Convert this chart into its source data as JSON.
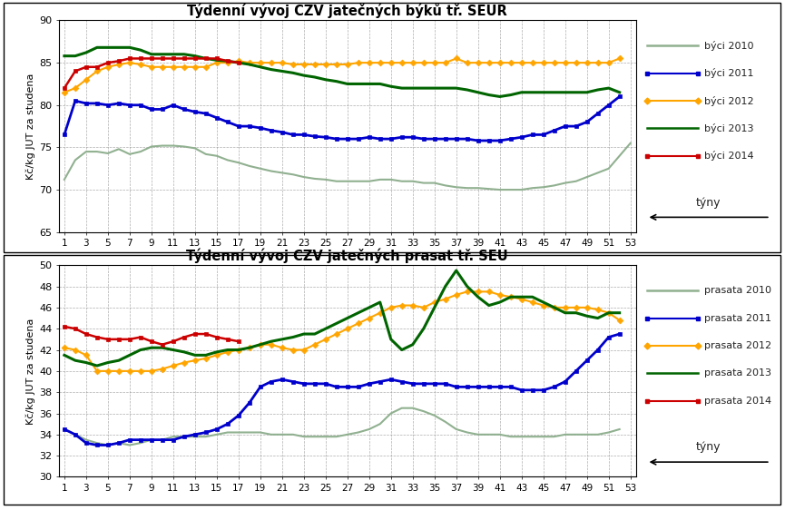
{
  "title1": "Týdenní vývoj CZV jatečných býků tř. SEUR",
  "title2": "Týdenní vývoj CZV jatečných prasat tř. SEU",
  "ylabel": "Kč/kg JUT za studena",
  "xlabel": "týny",
  "weeks": [
    1,
    2,
    3,
    4,
    5,
    6,
    7,
    8,
    9,
    10,
    11,
    12,
    13,
    14,
    15,
    16,
    17,
    18,
    19,
    20,
    21,
    22,
    23,
    24,
    25,
    26,
    27,
    28,
    29,
    30,
    31,
    32,
    33,
    34,
    35,
    36,
    37,
    38,
    39,
    40,
    41,
    42,
    43,
    44,
    45,
    46,
    47,
    48,
    49,
    50,
    51,
    52,
    53
  ],
  "byci2010": [
    71.2,
    73.5,
    74.5,
    74.5,
    74.3,
    74.8,
    74.2,
    74.5,
    75.1,
    75.2,
    75.2,
    75.1,
    74.9,
    74.2,
    74.0,
    73.5,
    73.2,
    72.8,
    72.5,
    72.2,
    72.0,
    71.8,
    71.5,
    71.3,
    71.2,
    71.0,
    71.0,
    71.0,
    71.0,
    71.2,
    71.2,
    71.0,
    71.0,
    70.8,
    70.8,
    70.5,
    70.3,
    70.2,
    70.2,
    70.1,
    70.0,
    70.0,
    70.0,
    70.2,
    70.3,
    70.5,
    70.8,
    71.0,
    71.5,
    72.0,
    72.5,
    74.0,
    75.5
  ],
  "byci2011": [
    76.5,
    80.5,
    80.2,
    80.2,
    80.0,
    80.2,
    80.0,
    80.0,
    79.5,
    79.5,
    80.0,
    79.5,
    79.2,
    79.0,
    78.5,
    78.0,
    77.5,
    77.5,
    77.3,
    77.0,
    76.8,
    76.5,
    76.5,
    76.3,
    76.2,
    76.0,
    76.0,
    76.0,
    76.2,
    76.0,
    76.0,
    76.2,
    76.2,
    76.0,
    76.0,
    76.0,
    76.0,
    76.0,
    75.8,
    75.8,
    75.8,
    76.0,
    76.2,
    76.5,
    76.5,
    77.0,
    77.5,
    77.5,
    78.0,
    79.0,
    80.0,
    81.0,
    null
  ],
  "byci2012": [
    81.5,
    82.0,
    83.0,
    84.0,
    84.5,
    84.8,
    85.0,
    84.8,
    84.5,
    84.5,
    84.5,
    84.5,
    84.5,
    84.5,
    85.0,
    85.0,
    85.2,
    85.0,
    85.0,
    85.0,
    85.0,
    84.8,
    84.8,
    84.8,
    84.8,
    84.8,
    84.8,
    85.0,
    85.0,
    85.0,
    85.0,
    85.0,
    85.0,
    85.0,
    85.0,
    85.0,
    85.5,
    85.0,
    85.0,
    85.0,
    85.0,
    85.0,
    85.0,
    85.0,
    85.0,
    85.0,
    85.0,
    85.0,
    85.0,
    85.0,
    85.0,
    85.5,
    null
  ],
  "byci2013": [
    85.8,
    85.8,
    86.2,
    86.8,
    86.8,
    86.8,
    86.8,
    86.5,
    86.0,
    86.0,
    86.0,
    86.0,
    85.8,
    85.5,
    85.3,
    85.2,
    85.0,
    84.8,
    84.5,
    84.2,
    84.0,
    83.8,
    83.5,
    83.3,
    83.0,
    82.8,
    82.5,
    82.5,
    82.5,
    82.5,
    82.2,
    82.0,
    82.0,
    82.0,
    82.0,
    82.0,
    82.0,
    81.8,
    81.5,
    81.2,
    81.0,
    81.2,
    81.5,
    81.5,
    81.5,
    81.5,
    81.5,
    81.5,
    81.5,
    81.8,
    82.0,
    81.5,
    null
  ],
  "byci2014": [
    82.0,
    84.0,
    84.5,
    84.5,
    85.0,
    85.2,
    85.5,
    85.5,
    85.5,
    85.5,
    85.5,
    85.5,
    85.5,
    85.5,
    85.5,
    85.2,
    85.0,
    null,
    null,
    null,
    null,
    null,
    null,
    null,
    null,
    null,
    null,
    null,
    null,
    null,
    null,
    null,
    null,
    null,
    null,
    null,
    null,
    null,
    null,
    null,
    null,
    null,
    null,
    null,
    null,
    null,
    null,
    null,
    null,
    null,
    null,
    null,
    null
  ],
  "prasata2010": [
    34.5,
    34.0,
    33.5,
    33.2,
    33.0,
    33.2,
    33.0,
    33.2,
    33.5,
    33.5,
    33.8,
    33.8,
    33.8,
    33.8,
    34.0,
    34.2,
    34.2,
    34.2,
    34.2,
    34.0,
    34.0,
    34.0,
    33.8,
    33.8,
    33.8,
    33.8,
    34.0,
    34.2,
    34.5,
    35.0,
    36.0,
    36.5,
    36.5,
    36.2,
    35.8,
    35.2,
    34.5,
    34.2,
    34.0,
    34.0,
    34.0,
    33.8,
    33.8,
    33.8,
    33.8,
    33.8,
    34.0,
    34.0,
    34.0,
    34.0,
    34.2,
    34.5,
    null
  ],
  "prasata2011": [
    34.5,
    34.0,
    33.2,
    33.0,
    33.0,
    33.2,
    33.5,
    33.5,
    33.5,
    33.5,
    33.5,
    33.8,
    34.0,
    34.2,
    34.5,
    35.0,
    35.8,
    37.0,
    38.5,
    39.0,
    39.2,
    39.0,
    38.8,
    38.8,
    38.8,
    38.5,
    38.5,
    38.5,
    38.8,
    39.0,
    39.2,
    39.0,
    38.8,
    38.8,
    38.8,
    38.8,
    38.5,
    38.5,
    38.5,
    38.5,
    38.5,
    38.5,
    38.2,
    38.2,
    38.2,
    38.5,
    39.0,
    40.0,
    41.0,
    42.0,
    43.2,
    43.5,
    null
  ],
  "prasata2012": [
    42.2,
    42.0,
    41.5,
    40.0,
    40.0,
    40.0,
    40.0,
    40.0,
    40.0,
    40.2,
    40.5,
    40.8,
    41.0,
    41.2,
    41.5,
    41.8,
    42.0,
    42.2,
    42.5,
    42.5,
    42.2,
    42.0,
    42.0,
    42.5,
    43.0,
    43.5,
    44.0,
    44.5,
    45.0,
    45.5,
    46.0,
    46.2,
    46.2,
    46.0,
    46.5,
    46.8,
    47.2,
    47.5,
    47.5,
    47.5,
    47.2,
    47.0,
    46.8,
    46.5,
    46.2,
    46.0,
    46.0,
    46.0,
    46.0,
    45.8,
    45.5,
    44.8,
    null
  ],
  "prasata2013": [
    41.5,
    41.0,
    40.8,
    40.5,
    40.8,
    41.0,
    41.5,
    42.0,
    42.2,
    42.2,
    42.0,
    41.8,
    41.5,
    41.5,
    41.8,
    42.0,
    42.0,
    42.2,
    42.5,
    42.8,
    43.0,
    43.2,
    43.5,
    43.5,
    44.0,
    44.5,
    45.0,
    45.5,
    46.0,
    46.5,
    43.0,
    42.0,
    42.5,
    44.0,
    46.0,
    48.0,
    49.5,
    48.0,
    47.0,
    46.2,
    46.5,
    47.0,
    47.0,
    47.0,
    46.5,
    46.0,
    45.5,
    45.5,
    45.2,
    45.0,
    45.5,
    45.5,
    null
  ],
  "prasata2014": [
    44.2,
    44.0,
    43.5,
    43.2,
    43.0,
    43.0,
    43.0,
    43.2,
    42.8,
    42.5,
    42.8,
    43.2,
    43.5,
    43.5,
    43.2,
    43.0,
    42.8,
    null,
    null,
    null,
    null,
    null,
    null,
    null,
    null,
    null,
    null,
    null,
    null,
    null,
    null,
    null,
    null,
    null,
    null,
    null,
    null,
    null,
    null,
    null,
    null,
    null,
    null,
    null,
    null,
    null,
    null,
    null,
    null,
    null,
    null,
    null,
    null
  ],
  "color2010": "#90B090",
  "color2011": "#0000CC",
  "color2012": "#FFA500",
  "color2013": "#006400",
  "color2014": "#CC0000",
  "ylim1": [
    65,
    90
  ],
  "ylim2": [
    30,
    50
  ],
  "yticks1": [
    65,
    70,
    75,
    80,
    85,
    90
  ],
  "yticks2": [
    30,
    32,
    34,
    36,
    38,
    40,
    42,
    44,
    46,
    48,
    50
  ],
  "xticks": [
    1,
    3,
    5,
    7,
    9,
    11,
    13,
    15,
    17,
    19,
    21,
    23,
    25,
    27,
    29,
    31,
    33,
    35,
    37,
    39,
    41,
    43,
    45,
    47,
    49,
    51,
    53
  ],
  "legend_labels1": [
    "býci 2010",
    "býci 2011",
    "býci 2012",
    "býci 2013",
    "býci 2014"
  ],
  "legend_labels2": [
    "prasata 2010",
    "prasata 2011",
    "prasata 2012",
    "prasata 2013",
    "prasata 2014"
  ],
  "bg_color": "#FFFFFF",
  "plot_bg": "#FFFFFF",
  "grid_color": "#999999",
  "border_color": "#000000"
}
